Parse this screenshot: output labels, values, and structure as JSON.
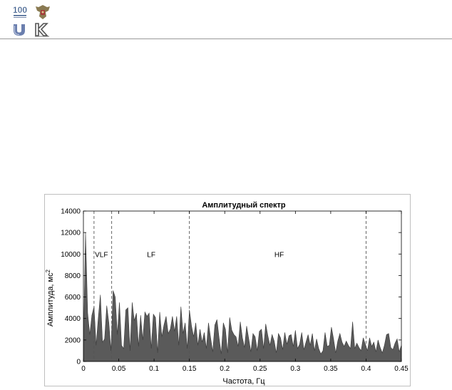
{
  "header": {
    "logos": [
      {
        "name": "anniversary-100-logo",
        "color": "#3a5a8a"
      },
      {
        "name": "coat-of-arms-logo",
        "color": "#8a7a52"
      },
      {
        "name": "university-u-logo",
        "color": "#6b7fae"
      },
      {
        "name": "k-emblem-logo",
        "color": "#555555"
      }
    ]
  },
  "chart_data": {
    "type": "area",
    "title": "Амплитудный спектр",
    "xlabel": "Частота, Гц",
    "ylabel": "Амплитуда, мс",
    "ylabel_superscript": "2",
    "xlim": [
      0,
      0.45
    ],
    "ylim": [
      0,
      14000
    ],
    "xticks": [
      "0",
      "0.05",
      "0.1",
      "0.15",
      "0.2",
      "0.25",
      "0.3",
      "0.35",
      "0.4",
      "0.45"
    ],
    "yticks": [
      "0",
      "2000",
      "4000",
      "6000",
      "8000",
      "10000",
      "12000",
      "14000"
    ],
    "grid": false,
    "fill_color": "#5a5a5a",
    "band_lines": [
      0.015,
      0.04,
      0.15,
      0.4
    ],
    "band_labels": [
      {
        "text": "VLF",
        "x": 0.0255,
        "y": 10000
      },
      {
        "text": "LF",
        "x": 0.096,
        "y": 10000
      },
      {
        "text": "HF",
        "x": 0.277,
        "y": 10000
      }
    ],
    "x": [
      0,
      0.003,
      0.006,
      0.009,
      0.012,
      0.015,
      0.018,
      0.021,
      0.024,
      0.027,
      0.03,
      0.033,
      0.036,
      0.039,
      0.042,
      0.045,
      0.048,
      0.051,
      0.054,
      0.057,
      0.06,
      0.063,
      0.066,
      0.069,
      0.072,
      0.075,
      0.078,
      0.081,
      0.084,
      0.087,
      0.09,
      0.093,
      0.096,
      0.099,
      0.102,
      0.105,
      0.108,
      0.111,
      0.114,
      0.117,
      0.12,
      0.123,
      0.126,
      0.129,
      0.132,
      0.135,
      0.138,
      0.141,
      0.144,
      0.147,
      0.15,
      0.153,
      0.156,
      0.159,
      0.162,
      0.165,
      0.168,
      0.171,
      0.174,
      0.177,
      0.18,
      0.183,
      0.186,
      0.189,
      0.192,
      0.195,
      0.198,
      0.201,
      0.204,
      0.207,
      0.21,
      0.213,
      0.216,
      0.219,
      0.222,
      0.225,
      0.228,
      0.231,
      0.234,
      0.237,
      0.24,
      0.243,
      0.246,
      0.249,
      0.252,
      0.255,
      0.258,
      0.261,
      0.264,
      0.267,
      0.27,
      0.273,
      0.276,
      0.279,
      0.282,
      0.285,
      0.288,
      0.291,
      0.294,
      0.297,
      0.3,
      0.303,
      0.306,
      0.309,
      0.312,
      0.315,
      0.318,
      0.321,
      0.324,
      0.327,
      0.33,
      0.333,
      0.336,
      0.339,
      0.342,
      0.345,
      0.348,
      0.351,
      0.354,
      0.357,
      0.36,
      0.363,
      0.366,
      0.369,
      0.372,
      0.375,
      0.378,
      0.381,
      0.384,
      0.387,
      0.39,
      0.393,
      0.396,
      0.399,
      0.402,
      0.405,
      0.408,
      0.411,
      0.414,
      0.417,
      0.42,
      0.423,
      0.426,
      0.429,
      0.432,
      0.435,
      0.438,
      0.441,
      0.444,
      0.447,
      0.45
    ],
    "values": [
      1500,
      12000,
      4500,
      2500,
      4300,
      5100,
      1500,
      4000,
      6200,
      1800,
      2100,
      5200,
      3600,
      1000,
      6600,
      6000,
      2500,
      5500,
      1500,
      1200,
      4800,
      5000,
      1000,
      5500,
      3800,
      4500,
      1400,
      4300,
      2000,
      4600,
      4200,
      4500,
      1200,
      4400,
      4100,
      800,
      4600,
      2300,
      3400,
      4200,
      2600,
      3000,
      4200,
      2800,
      4200,
      1500,
      5100,
      2600,
      3600,
      1200,
      4800,
      3300,
      2300,
      3600,
      1500,
      3000,
      1800,
      2700,
      1200,
      3600,
      2200,
      900,
      3400,
      3900,
      2200,
      700,
      3600,
      3000,
      800,
      4100,
      2900,
      2500,
      2300,
      1400,
      3700,
      2200,
      1300,
      3300,
      2100,
      900,
      2600,
      2300,
      1000,
      2800,
      3000,
      1200,
      3500,
      2400,
      1500,
      2500,
      1900,
      800,
      2600,
      2200,
      1100,
      2700,
      1600,
      2400,
      2500,
      1400,
      2900,
      1200,
      1600,
      2700,
      1100,
      1800,
      2500,
      1500,
      2600,
      1000,
      2100,
      1200,
      700,
      1000,
      2700,
      1400,
      1500,
      3200,
      2100,
      800,
      1900,
      2600,
      1800,
      1400,
      1900,
      1500,
      1200,
      3700,
      1200,
      1700,
      1300,
      1000,
      2200,
      1600,
      1000,
      2200,
      1400,
      1800,
      900,
      2000,
      1300,
      800,
      1500,
      2500,
      2600,
      1300,
      1100,
      1700,
      2100,
      900,
      1500
    ]
  }
}
